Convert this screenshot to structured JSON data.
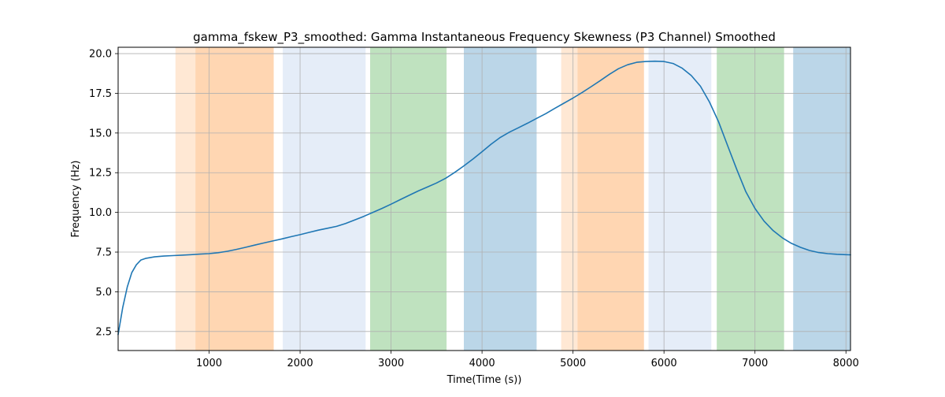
{
  "chart_data": {
    "type": "line",
    "title": "gamma_fskew_P3_smoothed: Gamma Instantaneous Frequency Skewness (P3 Channel) Smoothed",
    "xlabel": "Time(Time (s))",
    "ylabel": "Frequency (Hz)",
    "xlim": [
      0,
      8050
    ],
    "ylim": [
      1.3,
      20.4
    ],
    "xticks": [
      1000,
      2000,
      3000,
      4000,
      5000,
      6000,
      7000,
      8000
    ],
    "yticks": [
      2.5,
      5.0,
      7.5,
      10.0,
      12.5,
      15.0,
      17.5,
      20.0
    ],
    "xtick_labels": [
      "1000",
      "2000",
      "3000",
      "4000",
      "5000",
      "6000",
      "7000",
      "8000"
    ],
    "ytick_labels": [
      "2.5",
      "5.0",
      "7.5",
      "10.0",
      "12.5",
      "15.0",
      "17.5",
      "20.0"
    ],
    "grid": true,
    "line_color": "#1f77b4",
    "series": [
      {
        "x": [
          0,
          50,
          100,
          150,
          200,
          250,
          300,
          350,
          400,
          500,
          600,
          700,
          800,
          900,
          1000,
          1100,
          1200,
          1300,
          1400,
          1500,
          1600,
          1700,
          1800,
          1900,
          2000,
          2100,
          2200,
          2300,
          2400,
          2500,
          2600,
          2700,
          2800,
          2900,
          3000,
          3100,
          3200,
          3300,
          3400,
          3500,
          3600,
          3700,
          3800,
          3900,
          4000,
          4100,
          4200,
          4300,
          4400,
          4500,
          4600,
          4700,
          4800,
          4900,
          5000,
          5100,
          5200,
          5300,
          5400,
          5500,
          5600,
          5700,
          5800,
          5900,
          6000,
          6100,
          6200,
          6300,
          6400,
          6500,
          6600,
          6700,
          6800,
          6900,
          7000,
          7100,
          7200,
          7300,
          7400,
          7500,
          7600,
          7700,
          7800,
          7900,
          8000,
          8050
        ],
        "y": [
          2.3,
          4.0,
          5.3,
          6.2,
          6.7,
          7.0,
          7.1,
          7.15,
          7.2,
          7.25,
          7.28,
          7.31,
          7.34,
          7.37,
          7.4,
          7.46,
          7.55,
          7.67,
          7.8,
          7.94,
          8.07,
          8.2,
          8.33,
          8.47,
          8.6,
          8.74,
          8.88,
          9.0,
          9.12,
          9.3,
          9.52,
          9.75,
          10.0,
          10.25,
          10.52,
          10.8,
          11.08,
          11.35,
          11.6,
          11.85,
          12.15,
          12.52,
          12.93,
          13.36,
          13.82,
          14.3,
          14.72,
          15.05,
          15.33,
          15.62,
          15.92,
          16.22,
          16.55,
          16.88,
          17.2,
          17.55,
          17.92,
          18.3,
          18.7,
          19.05,
          19.3,
          19.45,
          19.5,
          19.52,
          19.5,
          19.38,
          19.08,
          18.62,
          17.95,
          16.95,
          15.7,
          14.2,
          12.7,
          11.3,
          10.25,
          9.45,
          8.85,
          8.4,
          8.05,
          7.8,
          7.6,
          7.47,
          7.4,
          7.36,
          7.34,
          7.33
        ]
      }
    ],
    "bands": [
      {
        "x0": 630,
        "x1": 850,
        "color": "#ff7f0e",
        "opacity": 0.18
      },
      {
        "x0": 850,
        "x1": 1710,
        "color": "#ff7f0e",
        "opacity": 0.32
      },
      {
        "x0": 1810,
        "x1": 2720,
        "color": "#aec7e8",
        "opacity": 0.32
      },
      {
        "x0": 2770,
        "x1": 3610,
        "color": "#2ca02c",
        "opacity": 0.3
      },
      {
        "x0": 3800,
        "x1": 4600,
        "color": "#1f77b4",
        "opacity": 0.3
      },
      {
        "x0": 4870,
        "x1": 5050,
        "color": "#ff7f0e",
        "opacity": 0.18
      },
      {
        "x0": 5050,
        "x1": 5780,
        "color": "#ff7f0e",
        "opacity": 0.32
      },
      {
        "x0": 5830,
        "x1": 6520,
        "color": "#aec7e8",
        "opacity": 0.32
      },
      {
        "x0": 6580,
        "x1": 7320,
        "color": "#2ca02c",
        "opacity": 0.3
      },
      {
        "x0": 7420,
        "x1": 8050,
        "color": "#1f77b4",
        "opacity": 0.3
      }
    ]
  }
}
